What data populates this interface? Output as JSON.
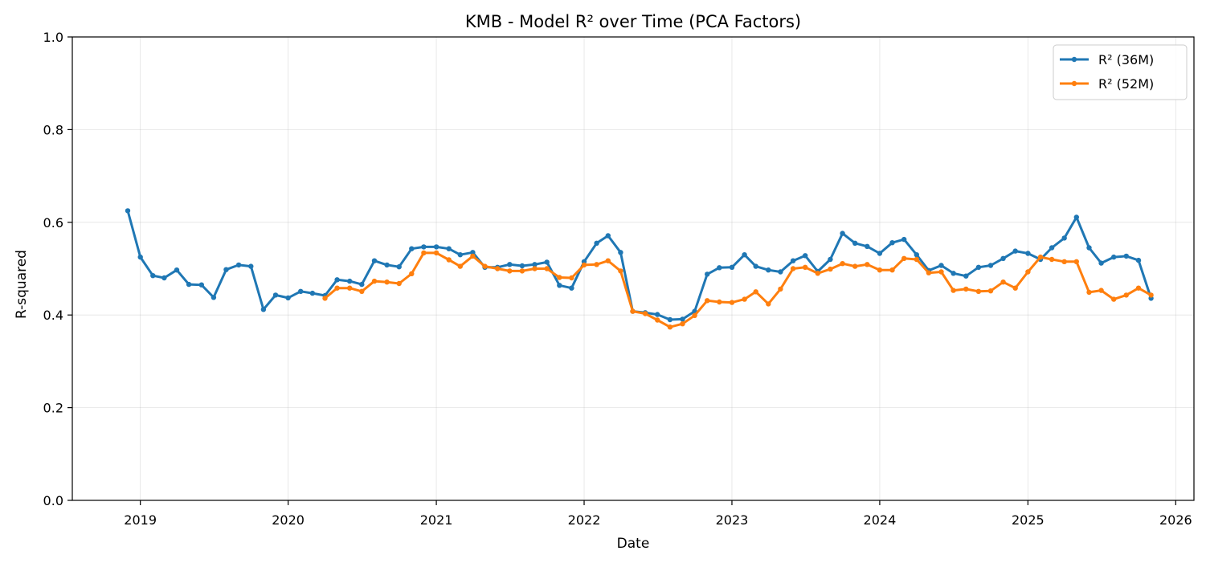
{
  "chart_data": {
    "type": "line",
    "title": "KMB - Model R² over Time (PCA Factors)",
    "xlabel": "Date",
    "ylabel": "R-squared",
    "xlim": [
      "2018-07-17",
      "2026-02-15"
    ],
    "ylim": [
      0,
      1
    ],
    "x_ticks": [
      "2019",
      "2020",
      "2021",
      "2022",
      "2023",
      "2024",
      "2025",
      "2026"
    ],
    "y_ticks": [
      "0.0",
      "0.2",
      "0.4",
      "0.6",
      "0.8",
      "1.0"
    ],
    "grid": true,
    "legend_position": "top-right",
    "series": [
      {
        "name": "R² (36M)",
        "color": "#1f77b4",
        "start": "2018-12",
        "values": [
          0.625,
          0.525,
          0.485,
          0.48,
          0.497,
          0.466,
          0.465,
          0.438,
          0.498,
          0.508,
          0.505,
          0.412,
          0.443,
          0.437,
          0.451,
          0.447,
          0.442,
          0.476,
          0.473,
          0.466,
          0.517,
          0.508,
          0.504,
          0.543,
          0.547,
          0.547,
          0.543,
          0.53,
          0.535,
          0.503,
          0.503,
          0.509,
          0.506,
          0.509,
          0.514,
          0.464,
          0.458,
          0.515,
          0.555,
          0.571,
          0.535,
          0.408,
          0.405,
          0.401,
          0.39,
          0.391,
          0.408,
          0.488,
          0.502,
          0.503,
          0.53,
          0.505,
          0.497,
          0.493,
          0.517,
          0.528,
          0.494,
          0.52,
          0.576,
          0.555,
          0.548,
          0.533,
          0.556,
          0.563,
          0.53,
          0.496,
          0.507,
          0.49,
          0.484,
          0.503,
          0.507,
          0.522,
          0.538,
          0.533,
          0.52,
          0.545,
          0.566,
          0.611,
          0.545,
          0.512,
          0.525,
          0.527,
          0.518,
          0.436
        ]
      },
      {
        "name": "R² (52M)",
        "color": "#ff7f0e",
        "start": "2020-04",
        "values": [
          0.436,
          0.458,
          0.458,
          0.451,
          0.473,
          0.471,
          0.468,
          0.489,
          0.534,
          0.534,
          0.519,
          0.505,
          0.527,
          0.505,
          0.5,
          0.495,
          0.495,
          0.5,
          0.5,
          0.481,
          0.48,
          0.508,
          0.509,
          0.517,
          0.495,
          0.408,
          0.403,
          0.389,
          0.374,
          0.381,
          0.399,
          0.431,
          0.428,
          0.427,
          0.434,
          0.45,
          0.424,
          0.456,
          0.5,
          0.503,
          0.49,
          0.499,
          0.511,
          0.505,
          0.509,
          0.497,
          0.497,
          0.522,
          0.52,
          0.491,
          0.493,
          0.453,
          0.456,
          0.451,
          0.452,
          0.471,
          0.458,
          0.493,
          0.525,
          0.52,
          0.515,
          0.515,
          0.449,
          0.453,
          0.434,
          0.443,
          0.458,
          0.443
        ]
      }
    ]
  }
}
